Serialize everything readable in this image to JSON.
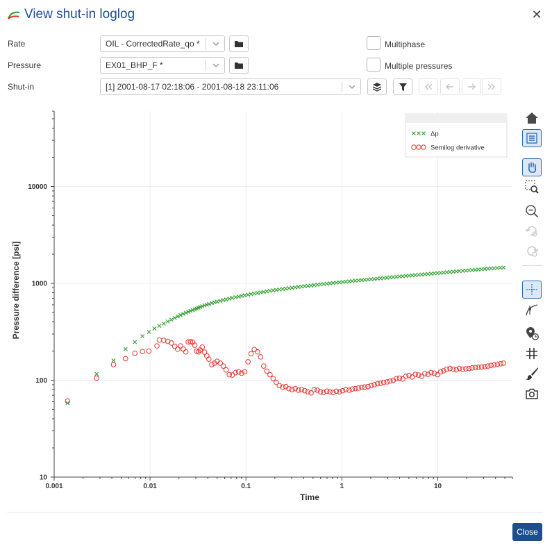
{
  "window": {
    "title": "View shut-in loglog",
    "close_symbol": "✕"
  },
  "form": {
    "rate_label": "Rate",
    "rate_value": "OIL - CorrectedRate_qo *",
    "pressure_label": "Pressure",
    "pressure_value": "EX01_BHP_F *",
    "shutin_label": "Shut-in",
    "shutin_value": "[1] 2001-08-17 02:18:06 - 2001-08-18 23:11:06",
    "multiphase_label": "Multiphase",
    "multiphase_checked": false,
    "multiple_pressures_label": "Multiple pressures",
    "multiple_pressures_checked": false
  },
  "toolbar_icons": [
    "home-icon",
    "legend-toggle-icon",
    "pan-icon",
    "zoom-box-icon",
    "zoom-out-icon",
    "zoom-undo-icon",
    "zoom-redo-icon",
    "crosshair-icon",
    "tangent-line-icon",
    "point-marker-icon",
    "grid-icon",
    "brush-icon",
    "camera-icon"
  ],
  "colors": {
    "accent": "#1f4e8c",
    "delta_p": "#2ca02c",
    "derivative": "#e8322e"
  },
  "footer": {
    "close_label": "Close"
  },
  "chart_data": {
    "type": "scatter",
    "xscale": "log",
    "yscale": "log",
    "xlabel": "Time",
    "ylabel": "Pressure difference [psi]",
    "xlim": [
      0.001,
      60
    ],
    "ylim": [
      10,
      60000
    ],
    "x_ticks": [
      "0.001",
      "0.01",
      "0.1",
      "1",
      "10"
    ],
    "y_ticks": [
      "10",
      "100",
      "1000",
      "10000"
    ],
    "grid": true,
    "legend_position": "top-right",
    "series": [
      {
        "name": "Δp",
        "marker": "x",
        "color": "#2ca02c",
        "points": [
          [
            0.00138,
            58
          ],
          [
            0.00277,
            116
          ],
          [
            0.00416,
            160
          ],
          [
            0.00555,
            210
          ],
          [
            0.00694,
            248
          ],
          [
            0.00833,
            285
          ],
          [
            0.00972,
            315
          ],
          [
            0.0111,
            342
          ],
          [
            0.0125,
            364
          ],
          [
            0.0139,
            385
          ],
          [
            0.0153,
            404
          ],
          [
            0.0167,
            422
          ],
          [
            0.0181,
            440
          ],
          [
            0.0194,
            456
          ],
          [
            0.0208,
            470
          ],
          [
            0.0222,
            484
          ],
          [
            0.0236,
            497
          ],
          [
            0.025,
            508
          ],
          [
            0.0264,
            520
          ],
          [
            0.0278,
            530
          ],
          [
            0.0292,
            540
          ],
          [
            0.0306,
            550
          ],
          [
            0.0319,
            560
          ],
          [
            0.0333,
            570
          ],
          [
            0.035,
            580
          ],
          [
            0.037,
            592
          ],
          [
            0.039,
            602
          ],
          [
            0.041,
            612
          ],
          [
            0.044,
            625
          ],
          [
            0.047,
            637
          ],
          [
            0.05,
            648
          ],
          [
            0.054,
            660
          ],
          [
            0.058,
            672
          ],
          [
            0.062,
            683
          ],
          [
            0.067,
            695
          ],
          [
            0.072,
            707
          ],
          [
            0.078,
            719
          ],
          [
            0.084,
            730
          ],
          [
            0.09,
            741
          ],
          [
            0.097,
            752
          ],
          [
            0.105,
            763
          ],
          [
            0.113,
            774
          ],
          [
            0.122,
            785
          ],
          [
            0.132,
            796
          ],
          [
            0.142,
            806
          ],
          [
            0.153,
            816
          ],
          [
            0.165,
            826
          ],
          [
            0.178,
            836
          ],
          [
            0.192,
            846
          ],
          [
            0.207,
            855
          ],
          [
            0.223,
            864
          ],
          [
            0.241,
            873
          ],
          [
            0.26,
            882
          ],
          [
            0.28,
            891
          ],
          [
            0.302,
            900
          ],
          [
            0.326,
            909
          ],
          [
            0.352,
            917
          ],
          [
            0.38,
            926
          ],
          [
            0.41,
            934
          ],
          [
            0.442,
            943
          ],
          [
            0.477,
            951
          ],
          [
            0.514,
            960
          ],
          [
            0.555,
            968
          ],
          [
            0.598,
            976
          ],
          [
            0.645,
            984
          ],
          [
            0.696,
            992
          ],
          [
            0.751,
            1000
          ],
          [
            0.81,
            1008
          ],
          [
            0.874,
            1016
          ],
          [
            0.943,
            1024
          ],
          [
            1.02,
            1032
          ],
          [
            1.1,
            1040
          ],
          [
            1.19,
            1048
          ],
          [
            1.28,
            1056
          ],
          [
            1.38,
            1064
          ],
          [
            1.49,
            1072
          ],
          [
            1.61,
            1080
          ],
          [
            1.73,
            1088
          ],
          [
            1.87,
            1096
          ],
          [
            2.02,
            1104
          ],
          [
            2.18,
            1112
          ],
          [
            2.35,
            1120
          ],
          [
            2.53,
            1128
          ],
          [
            2.73,
            1137
          ],
          [
            2.95,
            1145
          ],
          [
            3.18,
            1153
          ],
          [
            3.43,
            1161
          ],
          [
            3.7,
            1169
          ],
          [
            3.99,
            1177
          ],
          [
            4.31,
            1185
          ],
          [
            4.65,
            1193
          ],
          [
            5.01,
            1201
          ],
          [
            5.41,
            1209
          ],
          [
            5.83,
            1217
          ],
          [
            6.29,
            1226
          ],
          [
            6.79,
            1234
          ],
          [
            7.32,
            1242
          ],
          [
            7.9,
            1250
          ],
          [
            8.52,
            1259
          ],
          [
            9.19,
            1267
          ],
          [
            9.92,
            1276
          ],
          [
            10.7,
            1284
          ],
          [
            11.5,
            1293
          ],
          [
            12.4,
            1302
          ],
          [
            13.4,
            1310
          ],
          [
            14.5,
            1319
          ],
          [
            15.6,
            1328
          ],
          [
            16.8,
            1337
          ],
          [
            18.2,
            1345
          ],
          [
            19.6,
            1354
          ],
          [
            21.1,
            1363
          ],
          [
            22.8,
            1372
          ],
          [
            24.6,
            1381
          ],
          [
            26.5,
            1390
          ],
          [
            28.6,
            1399
          ],
          [
            30.9,
            1408
          ],
          [
            33.3,
            1417
          ],
          [
            35.9,
            1425
          ],
          [
            38.7,
            1433
          ],
          [
            41.8,
            1440
          ],
          [
            45.1,
            1447
          ],
          [
            48.5,
            1453
          ]
        ]
      },
      {
        "name": "Semilog derivative",
        "marker": "o",
        "color": "#e8322e",
        "points": [
          [
            0.00138,
            61
          ],
          [
            0.00277,
            105
          ],
          [
            0.00416,
            145
          ],
          [
            0.00555,
            167
          ],
          [
            0.00694,
            190
          ],
          [
            0.00833,
            198
          ],
          [
            0.00972,
            200
          ],
          [
            0.0118,
            226
          ],
          [
            0.0125,
            260
          ],
          [
            0.0139,
            258
          ],
          [
            0.0153,
            252
          ],
          [
            0.0167,
            242
          ],
          [
            0.0181,
            224
          ],
          [
            0.0194,
            209
          ],
          [
            0.0208,
            226
          ],
          [
            0.0222,
            210
          ],
          [
            0.0236,
            196
          ],
          [
            0.025,
            248
          ],
          [
            0.0264,
            250
          ],
          [
            0.0278,
            247
          ],
          [
            0.0292,
            230
          ],
          [
            0.0306,
            200
          ],
          [
            0.0319,
            196
          ],
          [
            0.0333,
            205
          ],
          [
            0.035,
            220
          ],
          [
            0.037,
            195
          ],
          [
            0.039,
            178
          ],
          [
            0.041,
            165
          ],
          [
            0.044,
            145
          ],
          [
            0.047,
            150
          ],
          [
            0.05,
            157
          ],
          [
            0.054,
            150
          ],
          [
            0.058,
            140
          ],
          [
            0.062,
            128
          ],
          [
            0.067,
            114
          ],
          [
            0.072,
            113
          ],
          [
            0.078,
            120
          ],
          [
            0.084,
            122
          ],
          [
            0.09,
            118
          ],
          [
            0.097,
            122
          ],
          [
            0.105,
            155
          ],
          [
            0.113,
            188
          ],
          [
            0.122,
            208
          ],
          [
            0.132,
            196
          ],
          [
            0.142,
            174
          ],
          [
            0.153,
            140
          ],
          [
            0.165,
            124
          ],
          [
            0.178,
            114
          ],
          [
            0.192,
            104
          ],
          [
            0.207,
            95
          ],
          [
            0.223,
            88
          ],
          [
            0.241,
            85
          ],
          [
            0.26,
            86
          ],
          [
            0.28,
            82
          ],
          [
            0.302,
            80
          ],
          [
            0.326,
            82
          ],
          [
            0.352,
            79
          ],
          [
            0.38,
            80
          ],
          [
            0.41,
            78
          ],
          [
            0.442,
            76
          ],
          [
            0.477,
            74
          ],
          [
            0.514,
            80
          ],
          [
            0.555,
            79
          ],
          [
            0.598,
            76
          ],
          [
            0.645,
            75
          ],
          [
            0.696,
            77
          ],
          [
            0.751,
            76
          ],
          [
            0.81,
            75
          ],
          [
            0.874,
            77
          ],
          [
            0.943,
            76
          ],
          [
            1.02,
            78
          ],
          [
            1.1,
            80
          ],
          [
            1.19,
            79
          ],
          [
            1.28,
            81
          ],
          [
            1.38,
            82
          ],
          [
            1.49,
            83
          ],
          [
            1.61,
            84
          ],
          [
            1.73,
            85
          ],
          [
            1.87,
            86
          ],
          [
            2.02,
            88
          ],
          [
            2.18,
            90
          ],
          [
            2.35,
            92
          ],
          [
            2.53,
            93
          ],
          [
            2.73,
            95
          ],
          [
            2.95,
            96
          ],
          [
            3.18,
            98
          ],
          [
            3.43,
            100
          ],
          [
            3.7,
            104
          ],
          [
            3.99,
            105
          ],
          [
            4.31,
            103
          ],
          [
            4.65,
            110
          ],
          [
            5.01,
            112
          ],
          [
            5.41,
            108
          ],
          [
            5.83,
            115
          ],
          [
            6.29,
            113
          ],
          [
            6.79,
            110
          ],
          [
            7.32,
            117
          ],
          [
            7.9,
            115
          ],
          [
            8.52,
            120
          ],
          [
            9.19,
            118
          ],
          [
            9.92,
            114
          ],
          [
            10.7,
            122
          ],
          [
            11.5,
            125
          ],
          [
            12.4,
            130
          ],
          [
            13.4,
            132
          ],
          [
            14.5,
            130
          ],
          [
            15.6,
            128
          ],
          [
            16.8,
            132
          ],
          [
            18.2,
            130
          ],
          [
            19.6,
            131
          ],
          [
            21.1,
            132
          ],
          [
            22.8,
            134
          ],
          [
            24.6,
            135
          ],
          [
            26.5,
            136
          ],
          [
            28.6,
            137
          ],
          [
            30.9,
            138
          ],
          [
            33.3,
            140
          ],
          [
            35.9,
            142
          ],
          [
            38.7,
            144
          ],
          [
            41.8,
            146
          ],
          [
            45.1,
            148
          ],
          [
            48.5,
            150
          ]
        ]
      }
    ]
  }
}
